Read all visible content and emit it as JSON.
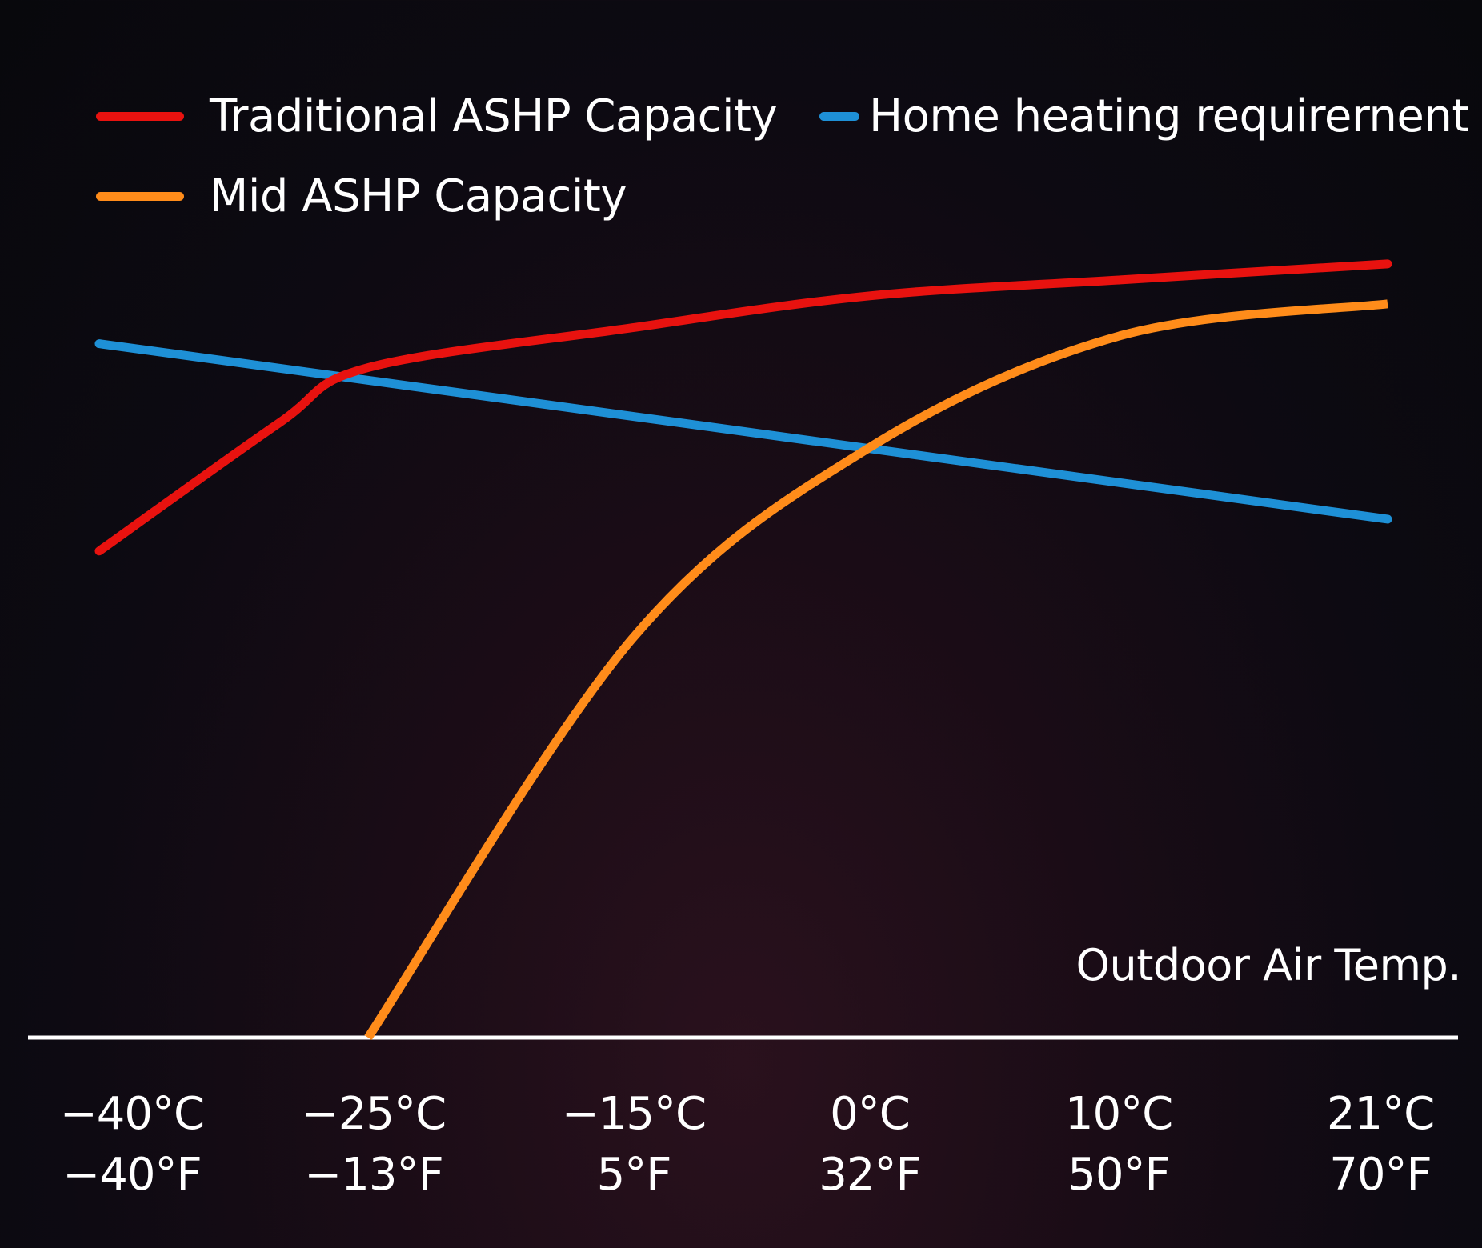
{
  "chart_data": {
    "type": "line",
    "title": "",
    "xlabel": "Outdoor Air Temp.",
    "ylabel": "",
    "x_ticks": [
      {
        "value": -40,
        "label_c": "−40°C",
        "label_f": "−40°F"
      },
      {
        "value": -25,
        "label_c": "−25°C",
        "label_f": "−13°F"
      },
      {
        "value": -15,
        "label_c": "−15°C",
        "label_f": "5°F"
      },
      {
        "value": 0,
        "label_c": "0°C",
        "label_f": "32°F"
      },
      {
        "value": 10,
        "label_c": "10°C",
        "label_f": "50°F"
      },
      {
        "value": 21,
        "label_c": "21°C",
        "label_f": "70°F"
      }
    ],
    "ylim": [
      0,
      100
    ],
    "grid": false,
    "legend_placement": "top-left",
    "series": [
      {
        "name": "Traditional ASHP Capacity",
        "color": "#e8120f",
        "points": [
          [
            -40,
            61
          ],
          [
            -30,
            77
          ],
          [
            -25,
            84
          ],
          [
            -15,
            89
          ],
          [
            0,
            93
          ],
          [
            10,
            95
          ],
          [
            21,
            97
          ]
        ]
      },
      {
        "name": "Home heating requirernent",
        "color": "#1e90d6",
        "points": [
          [
            -40,
            87
          ],
          [
            21,
            65
          ]
        ]
      },
      {
        "name": "Mid ASHP Capacity",
        "color": "#ff8c1a",
        "points": [
          [
            -25,
            0
          ],
          [
            -15,
            50
          ],
          [
            0,
            74
          ],
          [
            10,
            88
          ],
          [
            21,
            92
          ]
        ]
      }
    ]
  }
}
